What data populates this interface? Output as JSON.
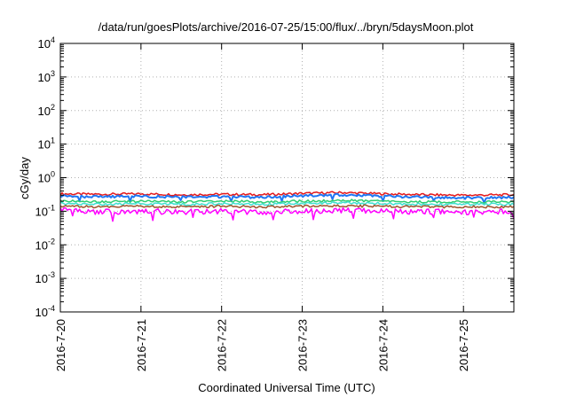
{
  "chart_data": {
    "type": "line",
    "title": "/data/run/goesPlots/archive/2016-07-25/15:00/flux/../bryn/5daysMoon.plot",
    "xlabel": "Coordinated Universal Time (UTC)",
    "ylabel": "cGy/day",
    "y_scale": "log",
    "ylim": [
      0.0001,
      10000
    ],
    "y_ticks": [
      {
        "value": 0.0001,
        "base": "10",
        "exp": "-4"
      },
      {
        "value": 0.001,
        "base": "10",
        "exp": "-3"
      },
      {
        "value": 0.01,
        "base": "10",
        "exp": "-2"
      },
      {
        "value": 0.1,
        "base": "10",
        "exp": "-1"
      },
      {
        "value": 1,
        "base": "10",
        "exp": "0"
      },
      {
        "value": 10,
        "base": "10",
        "exp": "1"
      },
      {
        "value": 100,
        "base": "10",
        "exp": "2"
      },
      {
        "value": 1000,
        "base": "10",
        "exp": "3"
      },
      {
        "value": 10000,
        "base": "10",
        "exp": "4"
      }
    ],
    "xlim": [
      "2016-07-20 00:00",
      "2016-07-25 15:00"
    ],
    "x_ticks": [
      "2016-7-20",
      "2016-7-21",
      "2016-7-22",
      "2016-7-23",
      "2016-7-24",
      "2016-7-25"
    ],
    "grid": true,
    "series": [
      {
        "color": "#e41a1c",
        "x": [
          "2016-07-20 00:00",
          "2016-07-20 12:00",
          "2016-07-21 00:00",
          "2016-07-21 12:00",
          "2016-07-22 00:00",
          "2016-07-22 12:00",
          "2016-07-23 00:00",
          "2016-07-23 12:00",
          "2016-07-24 00:00",
          "2016-07-24 12:00",
          "2016-07-25 00:00",
          "2016-07-25 15:00"
        ],
        "values": [
          0.33,
          0.32,
          0.33,
          0.31,
          0.32,
          0.31,
          0.34,
          0.36,
          0.33,
          0.31,
          0.3,
          0.31
        ]
      },
      {
        "color": "#1f77f4",
        "x": [
          "2016-07-20 00:00",
          "2016-07-20 12:00",
          "2016-07-21 00:00",
          "2016-07-21 12:00",
          "2016-07-22 00:00",
          "2016-07-22 12:00",
          "2016-07-23 00:00",
          "2016-07-23 12:00",
          "2016-07-24 00:00",
          "2016-07-24 12:00",
          "2016-07-25 00:00",
          "2016-07-25 15:00"
        ],
        "values": [
          0.28,
          0.27,
          0.28,
          0.26,
          0.27,
          0.26,
          0.29,
          0.31,
          0.28,
          0.26,
          0.25,
          0.26
        ]
      },
      {
        "color": "#2ecc71",
        "x": [
          "2016-07-20 00:00",
          "2016-07-20 12:00",
          "2016-07-21 00:00",
          "2016-07-21 12:00",
          "2016-07-22 00:00",
          "2016-07-22 12:00",
          "2016-07-23 00:00",
          "2016-07-23 12:00",
          "2016-07-24 00:00",
          "2016-07-24 12:00",
          "2016-07-25 00:00",
          "2016-07-25 15:00"
        ],
        "values": [
          0.2,
          0.19,
          0.2,
          0.19,
          0.2,
          0.19,
          0.2,
          0.21,
          0.2,
          0.19,
          0.19,
          0.19
        ]
      },
      {
        "color": "#40e0d0",
        "x": [
          "2016-07-20 00:00",
          "2016-07-20 12:00",
          "2016-07-21 00:00",
          "2016-07-21 12:00",
          "2016-07-22 00:00",
          "2016-07-22 12:00",
          "2016-07-23 00:00",
          "2016-07-23 12:00",
          "2016-07-24 00:00",
          "2016-07-24 12:00",
          "2016-07-25 00:00",
          "2016-07-25 15:00"
        ],
        "values": [
          0.17,
          0.16,
          0.17,
          0.16,
          0.17,
          0.16,
          0.17,
          0.18,
          0.17,
          0.16,
          0.16,
          0.16
        ]
      },
      {
        "color": "#a0522d",
        "x": [
          "2016-07-20 00:00",
          "2016-07-20 12:00",
          "2016-07-21 00:00",
          "2016-07-21 12:00",
          "2016-07-22 00:00",
          "2016-07-22 12:00",
          "2016-07-23 00:00",
          "2016-07-23 12:00",
          "2016-07-24 00:00",
          "2016-07-24 12:00",
          "2016-07-25 00:00",
          "2016-07-25 15:00"
        ],
        "values": [
          0.14,
          0.135,
          0.14,
          0.135,
          0.14,
          0.135,
          0.14,
          0.145,
          0.14,
          0.135,
          0.135,
          0.135
        ]
      },
      {
        "color": "#ff00ff",
        "x": [
          "2016-07-20 00:00",
          "2016-07-20 12:00",
          "2016-07-21 00:00",
          "2016-07-21 12:00",
          "2016-07-22 00:00",
          "2016-07-22 12:00",
          "2016-07-23 00:00",
          "2016-07-23 12:00",
          "2016-07-24 00:00",
          "2016-07-24 12:00",
          "2016-07-25 00:00",
          "2016-07-25 15:00"
        ],
        "values": [
          0.11,
          0.095,
          0.1,
          0.095,
          0.1,
          0.095,
          0.1,
          0.105,
          0.1,
          0.098,
          0.095,
          0.1
        ]
      }
    ]
  }
}
